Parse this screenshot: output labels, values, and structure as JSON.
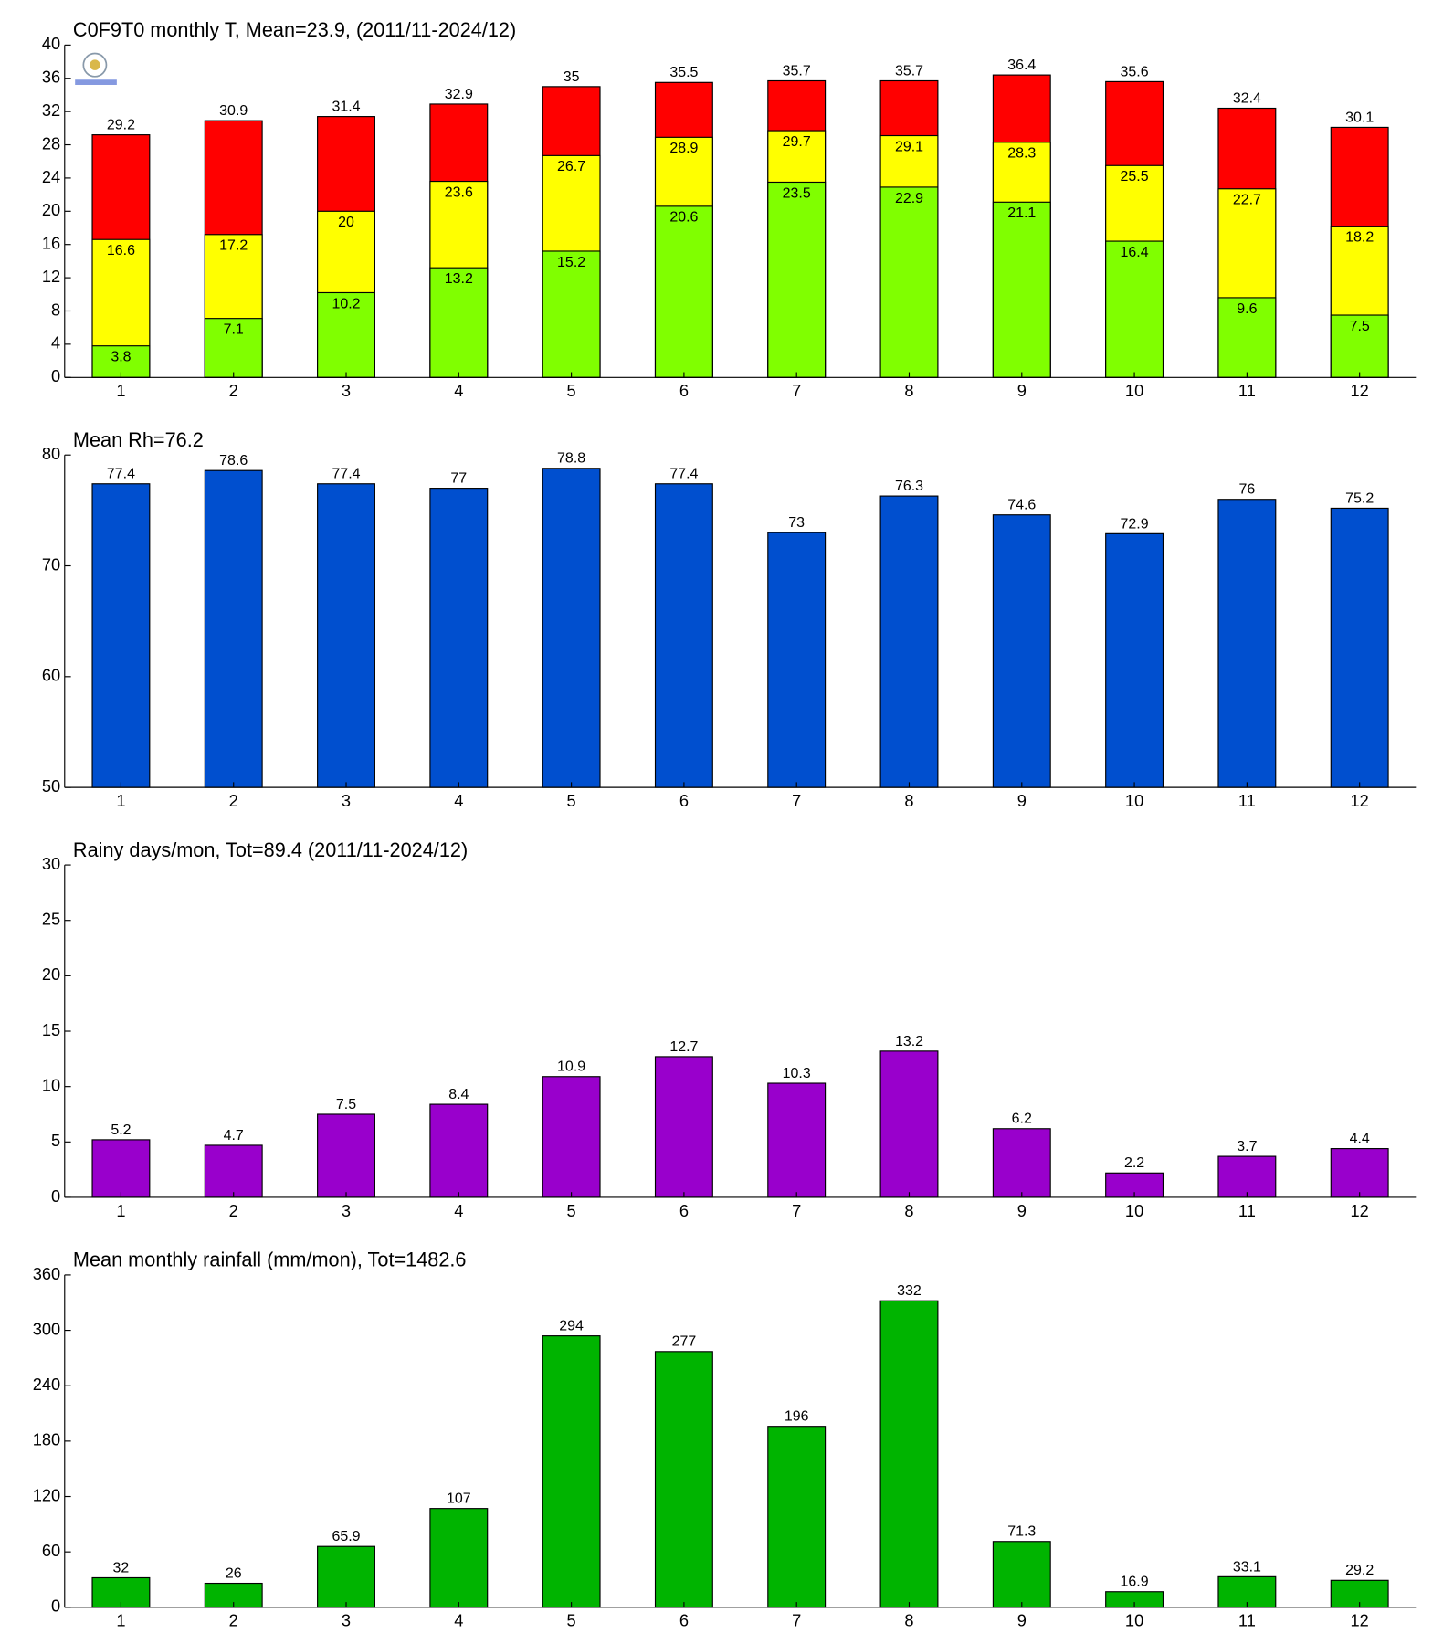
{
  "chart_data": [
    {
      "type": "bar",
      "title": "C0F9T0 monthly T, Mean=23.9, (2011/11-2024/12)",
      "categories": [
        "1",
        "2",
        "3",
        "4",
        "5",
        "6",
        "7",
        "8",
        "9",
        "10",
        "11",
        "12"
      ],
      "series": [
        {
          "color": "#80ff00",
          "values": [
            3.8,
            7.1,
            10.2,
            13.2,
            15.2,
            20.6,
            23.5,
            22.9,
            21.1,
            16.4,
            9.6,
            7.5
          ]
        },
        {
          "color": "#ffff00",
          "values": [
            16.6,
            17.2,
            20,
            23.6,
            26.7,
            28.9,
            29.7,
            29.1,
            28.3,
            25.5,
            22.7,
            18.2
          ]
        },
        {
          "color": "#ff0000",
          "values": [
            29.2,
            30.9,
            31.4,
            32.9,
            35,
            35.5,
            35.7,
            35.7,
            36.4,
            35.6,
            32.4,
            30.1
          ]
        }
      ],
      "ylim": [
        0,
        40
      ],
      "yticks": [
        0,
        4,
        8,
        12,
        16,
        20,
        24,
        28,
        32,
        36,
        40
      ]
    },
    {
      "type": "bar",
      "title": "Mean Rh=76.2",
      "categories": [
        "1",
        "2",
        "3",
        "4",
        "5",
        "6",
        "7",
        "8",
        "9",
        "10",
        "11",
        "12"
      ],
      "values": [
        77.4,
        78.6,
        77.4,
        77,
        78.8,
        77.4,
        73,
        76.3,
        74.6,
        72.9,
        76,
        75.2
      ],
      "color": "#004fcf",
      "ylim": [
        50,
        80
      ],
      "yticks": [
        50,
        60,
        70,
        80
      ]
    },
    {
      "type": "bar",
      "title": "Rainy days/mon, Tot=89.4 (2011/11-2024/12)",
      "categories": [
        "1",
        "2",
        "3",
        "4",
        "5",
        "6",
        "7",
        "8",
        "9",
        "10",
        "11",
        "12"
      ],
      "values": [
        5.2,
        4.7,
        7.5,
        8.4,
        10.9,
        12.7,
        10.3,
        13.2,
        6.2,
        2.2,
        3.7,
        4.4
      ],
      "color": "#9900cc",
      "ylim": [
        0,
        30
      ],
      "yticks": [
        0,
        5,
        10,
        15,
        20,
        25,
        30
      ]
    },
    {
      "type": "bar",
      "title": "Mean monthly rainfall (mm/mon), Tot=1482.6",
      "categories": [
        "1",
        "2",
        "3",
        "4",
        "5",
        "6",
        "7",
        "8",
        "9",
        "10",
        "11",
        "12"
      ],
      "values": [
        32,
        26,
        65.9,
        107,
        294,
        277,
        196,
        332,
        71.3,
        16.9,
        33.1,
        29.2
      ],
      "color": "#00b400",
      "ylim": [
        0,
        360
      ],
      "yticks": [
        0,
        60,
        120,
        180,
        240,
        300,
        360
      ]
    }
  ]
}
